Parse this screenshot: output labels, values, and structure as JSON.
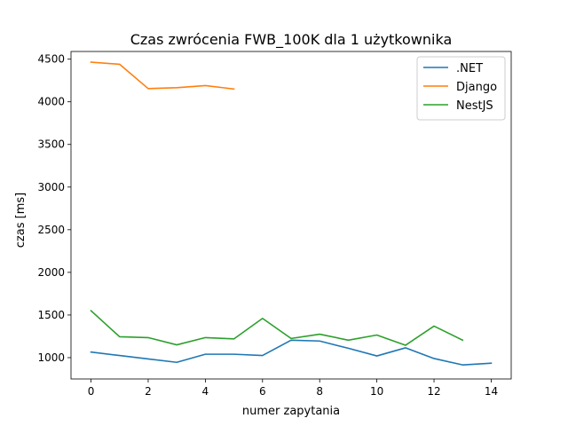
{
  "chart_data": {
    "type": "line",
    "title": "Czas zwrócenia FWB_100K dla 1 użytkownika",
    "xlabel": "numer zapytania",
    "ylabel": "czas [ms]",
    "xlim": [
      -0.7,
      14.7
    ],
    "ylim": [
      750,
      4590
    ],
    "xticks": [
      0,
      2,
      4,
      6,
      8,
      10,
      12,
      14
    ],
    "yticks": [
      1000,
      1500,
      2000,
      2500,
      3000,
      3500,
      4000,
      4500
    ],
    "grid": false,
    "legend_position": "top-right",
    "series": [
      {
        "name": ".NET",
        "color": "#1f77b4",
        "x": [
          0,
          1,
          2,
          3,
          4,
          5,
          6,
          7,
          8,
          9,
          10,
          11,
          12,
          13,
          14
        ],
        "y": [
          1065,
          1025,
          985,
          945,
          1040,
          1040,
          1025,
          1205,
          1195,
          1110,
          1020,
          1115,
          990,
          915,
          935
        ]
      },
      {
        "name": "Django",
        "color": "#ff7f0e",
        "x": [
          0,
          1,
          2,
          3,
          4,
          5
        ],
        "y": [
          4465,
          4440,
          4155,
          4165,
          4190,
          4150
        ]
      },
      {
        "name": "NestJS",
        "color": "#2ca02c",
        "x": [
          0,
          1,
          2,
          3,
          4,
          5,
          6,
          7,
          8,
          9,
          10,
          11,
          12,
          13
        ],
        "y": [
          1550,
          1245,
          1235,
          1150,
          1235,
          1220,
          1460,
          1225,
          1275,
          1205,
          1265,
          1145,
          1370,
          1205
        ]
      }
    ]
  }
}
